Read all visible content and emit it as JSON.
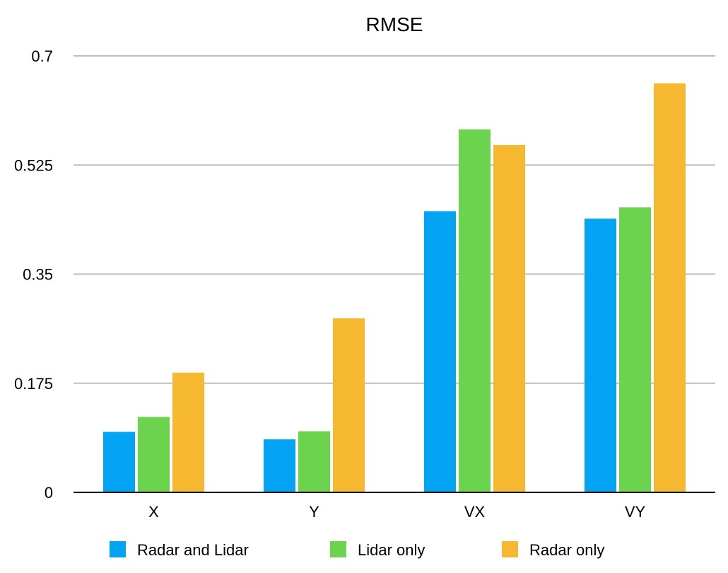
{
  "chart_data": {
    "type": "bar",
    "title": "RMSE",
    "xlabel": "",
    "ylabel": "",
    "categories": [
      "X",
      "Y",
      "VX",
      "VY"
    ],
    "ylim": [
      0,
      0.7
    ],
    "yticks": [
      "0",
      "0.175",
      "0.35",
      "0.525",
      "0.7"
    ],
    "grid": true,
    "legend_position": "bottom",
    "series": [
      {
        "name": "Radar and Lidar",
        "color": "#04A4F4",
        "values": [
          0.097,
          0.085,
          0.451,
          0.439
        ]
      },
      {
        "name": "Lidar only",
        "color": "#6BD34E",
        "values": [
          0.121,
          0.098,
          0.582,
          0.457
        ]
      },
      {
        "name": "Radar only",
        "color": "#F6B731",
        "values": [
          0.192,
          0.279,
          0.557,
          0.656
        ]
      }
    ]
  }
}
